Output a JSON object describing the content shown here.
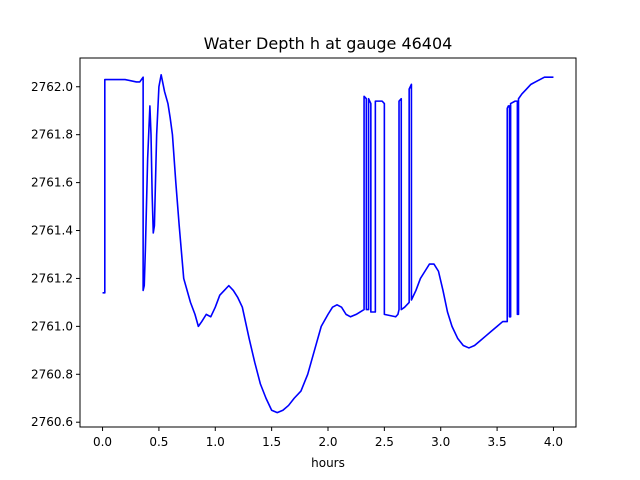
{
  "chart_data": {
    "type": "line",
    "title": "Water Depth h at gauge 46404",
    "xlabel": "hours",
    "ylabel": "",
    "xlim": [
      -0.2,
      4.2
    ],
    "ylim": [
      2760.58,
      2762.12
    ],
    "grid": false,
    "xticks": [
      0.0,
      0.5,
      1.0,
      1.5,
      2.0,
      2.5,
      3.0,
      3.5,
      4.0
    ],
    "xtick_labels": [
      "0.0",
      "0.5",
      "1.0",
      "1.5",
      "2.0",
      "2.5",
      "3.0",
      "3.5",
      "4.0"
    ],
    "yticks": [
      2760.6,
      2760.8,
      2761.0,
      2761.2,
      2761.4,
      2761.6,
      2761.8,
      2762.0
    ],
    "ytick_labels": [
      "2760.6",
      "2760.8",
      "2761.0",
      "2761.2",
      "2761.4",
      "2761.6",
      "2761.8",
      "2762.0"
    ],
    "series": [
      {
        "name": "",
        "color": "#0000ff",
        "x": [
          0.0,
          0.02,
          0.02,
          0.1,
          0.2,
          0.3,
          0.33,
          0.36,
          0.36,
          0.37,
          0.38,
          0.4,
          0.42,
          0.43,
          0.44,
          0.45,
          0.46,
          0.48,
          0.5,
          0.52,
          0.55,
          0.58,
          0.6,
          0.62,
          0.65,
          0.68,
          0.72,
          0.78,
          0.82,
          0.85,
          0.88,
          0.92,
          0.96,
          1.0,
          1.04,
          1.08,
          1.12,
          1.16,
          1.2,
          1.24,
          1.3,
          1.35,
          1.4,
          1.45,
          1.5,
          1.55,
          1.6,
          1.65,
          1.7,
          1.76,
          1.82,
          1.88,
          1.94,
          2.0,
          2.04,
          2.08,
          2.12,
          2.16,
          2.2,
          2.25,
          2.32,
          2.32,
          2.34,
          2.34,
          2.36,
          2.36,
          2.38,
          2.38,
          2.4,
          2.42,
          2.42,
          2.48,
          2.5,
          2.5,
          2.6,
          2.62,
          2.63,
          2.63,
          2.65,
          2.65,
          2.68,
          2.72,
          2.72,
          2.74,
          2.74,
          2.78,
          2.82,
          2.86,
          2.9,
          2.94,
          2.98,
          3.02,
          3.06,
          3.1,
          3.15,
          3.2,
          3.25,
          3.3,
          3.35,
          3.4,
          3.45,
          3.5,
          3.55,
          3.59,
          3.59,
          3.6,
          3.61,
          3.61,
          3.62,
          3.62,
          3.66,
          3.68,
          3.68,
          3.69,
          3.69,
          3.72,
          3.76,
          3.8,
          3.84,
          3.88,
          3.92,
          3.96,
          4.0
        ],
        "y": [
          2761.14,
          2761.14,
          2762.03,
          2762.03,
          2762.03,
          2762.02,
          2762.02,
          2762.04,
          2761.15,
          2761.17,
          2761.32,
          2761.7,
          2761.92,
          2761.8,
          2761.55,
          2761.39,
          2761.42,
          2761.8,
          2762.0,
          2762.05,
          2761.98,
          2761.93,
          2761.87,
          2761.8,
          2761.6,
          2761.42,
          2761.2,
          2761.1,
          2761.05,
          2761.0,
          2761.02,
          2761.05,
          2761.04,
          2761.08,
          2761.13,
          2761.15,
          2761.17,
          2761.15,
          2761.12,
          2761.08,
          2760.95,
          2760.85,
          2760.76,
          2760.7,
          2760.65,
          2760.64,
          2760.65,
          2760.67,
          2760.7,
          2760.73,
          2760.8,
          2760.9,
          2761.0,
          2761.05,
          2761.08,
          2761.09,
          2761.08,
          2761.05,
          2761.04,
          2761.05,
          2761.07,
          2761.96,
          2761.95,
          2761.07,
          2761.07,
          2761.95,
          2761.93,
          2761.06,
          2761.06,
          2761.06,
          2761.94,
          2761.94,
          2761.93,
          2761.05,
          2761.04,
          2761.05,
          2761.07,
          2761.94,
          2761.95,
          2761.07,
          2761.08,
          2761.1,
          2761.99,
          2762.01,
          2761.11,
          2761.15,
          2761.2,
          2761.23,
          2761.26,
          2761.26,
          2761.23,
          2761.15,
          2761.06,
          2761.0,
          2760.95,
          2760.92,
          2760.91,
          2760.92,
          2760.94,
          2760.96,
          2760.98,
          2761.0,
          2761.02,
          2761.02,
          2761.91,
          2761.92,
          2761.92,
          2761.04,
          2761.04,
          2761.93,
          2761.94,
          2761.94,
          2761.05,
          2761.05,
          2761.95,
          2761.97,
          2761.99,
          2762.01,
          2762.02,
          2762.03,
          2762.04,
          2762.04,
          2762.04
        ]
      }
    ]
  }
}
